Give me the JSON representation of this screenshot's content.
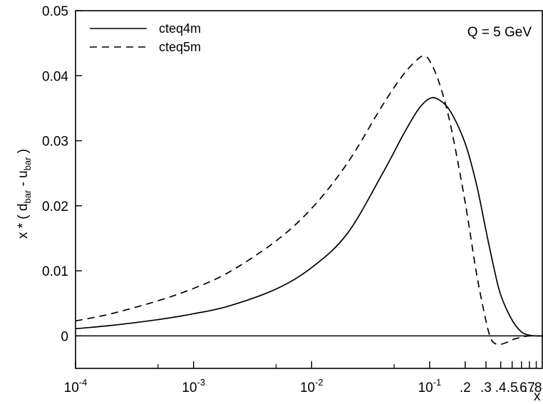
{
  "chart_data": {
    "type": "line",
    "xscale": "log",
    "xlim": [
      0.0001,
      0.9
    ],
    "ylim": [
      -0.005,
      0.05
    ],
    "grid": false,
    "legend_position": "top-left",
    "xlabel": "x",
    "ylabel": {
      "prefix": "x * ( d",
      "sub1": "bar",
      "middle": " - u",
      "sub2": "bar",
      "suffix": " )"
    },
    "annotation": "Q = 5 GeV",
    "y_ticks": [
      {
        "value": 0,
        "label": "0"
      },
      {
        "value": 0.01,
        "label": "0.01"
      },
      {
        "value": 0.02,
        "label": "0.02"
      },
      {
        "value": 0.03,
        "label": "0.03"
      },
      {
        "value": 0.04,
        "label": "0.04"
      },
      {
        "value": 0.05,
        "label": "0.05"
      }
    ],
    "x_ticks": [
      {
        "value": 0.0001,
        "base": "10",
        "exp": "-4"
      },
      {
        "value": 0.001,
        "base": "10",
        "exp": "-3"
      },
      {
        "value": 0.01,
        "base": "10",
        "exp": "-2"
      },
      {
        "value": 0.1,
        "base": "10",
        "exp": "-1"
      },
      {
        "value": 0.2,
        "label": ".2"
      },
      {
        "value": 0.3,
        "label": ".3"
      },
      {
        "value": 0.4,
        "label": ".4"
      },
      {
        "value": 0.5,
        "label": ".5"
      },
      {
        "value": 0.6,
        "label": ".6"
      },
      {
        "value": 0.7,
        "label": ".7"
      },
      {
        "value": 0.8,
        "label": ".8"
      }
    ],
    "series": [
      {
        "name": "cteq4m",
        "style": "solid",
        "x": [
          0.0001,
          0.0002,
          0.0005,
          0.001,
          0.002,
          0.005,
          0.01,
          0.02,
          0.04,
          0.06,
          0.08,
          0.1,
          0.12,
          0.15,
          0.2,
          0.25,
          0.3,
          0.35,
          0.4,
          0.5,
          0.6,
          0.7,
          0.8,
          0.9
        ],
        "y": [
          0.0011,
          0.0016,
          0.0025,
          0.0034,
          0.0046,
          0.0072,
          0.0105,
          0.0157,
          0.025,
          0.031,
          0.0348,
          0.0365,
          0.0363,
          0.0345,
          0.0296,
          0.0232,
          0.0162,
          0.0105,
          0.0063,
          0.0024,
          0.0006,
          0.0001,
          0.0,
          0.0
        ]
      },
      {
        "name": "cteq5m",
        "style": "dashed",
        "x": [
          0.0001,
          0.0002,
          0.0005,
          0.001,
          0.002,
          0.005,
          0.01,
          0.02,
          0.04,
          0.06,
          0.08,
          0.09,
          0.1,
          0.12,
          0.15,
          0.2,
          0.25,
          0.3,
          0.33,
          0.36,
          0.4,
          0.45,
          0.5,
          0.6,
          0.7,
          0.8,
          0.9
        ],
        "y": [
          0.0023,
          0.0034,
          0.0054,
          0.0073,
          0.0098,
          0.0146,
          0.0196,
          0.0265,
          0.0355,
          0.0402,
          0.0426,
          0.043,
          0.0423,
          0.039,
          0.0325,
          0.0205,
          0.0095,
          0.0023,
          -0.0004,
          -0.0012,
          -0.0013,
          -0.001,
          -0.0006,
          -0.0002,
          0.0,
          0.0,
          0.0
        ]
      }
    ]
  }
}
